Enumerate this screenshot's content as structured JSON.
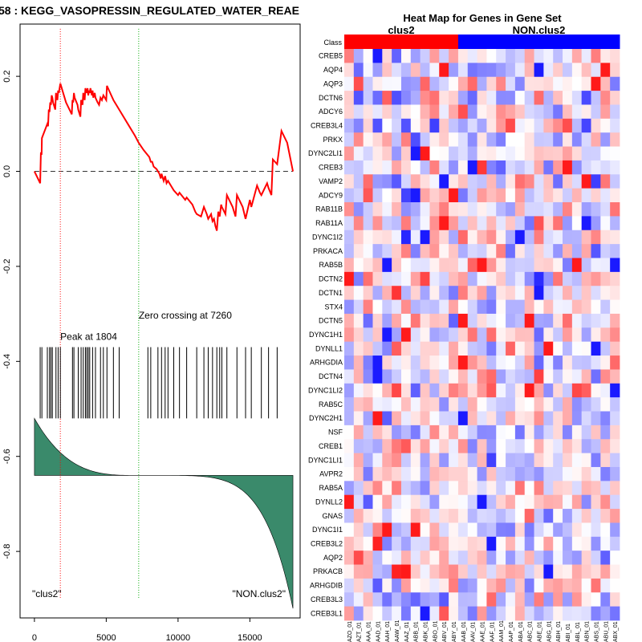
{
  "chart_data": [
    {
      "type": "line",
      "title": "58 : KEGG_VASOPRESSIN_REGULATED_WATER_REAE",
      "xlim": [
        -1000,
        18500
      ],
      "ylim": [
        -0.94,
        0.31
      ],
      "x_ticks": [
        0,
        5000,
        10000,
        15000
      ],
      "y_ticks": [
        0.2,
        0.0,
        -0.2,
        -0.4,
        -0.6,
        -0.8
      ],
      "x_tick_labels": [
        "0",
        "5000",
        "10000",
        "15000"
      ],
      "y_tick_labels": [
        "0.2",
        "0.0",
        "-0.2",
        "-0.4",
        "-0.6",
        "-0.8"
      ],
      "enrichment_score": {
        "x": [
          0,
          400,
          450,
          500,
          520,
          900,
          950,
          1000,
          1050,
          1100,
          1150,
          1200,
          1250,
          1300,
          1400,
          1450,
          1500,
          1600,
          1650,
          1700,
          1804,
          2200,
          2600,
          2650,
          2700,
          2750,
          2800,
          3000,
          3050,
          3200,
          3250,
          3350,
          3400,
          3500,
          3550,
          3600,
          3650,
          3700,
          3750,
          3800,
          3850,
          3900,
          4000,
          4050,
          4100,
          4200,
          4250,
          4400,
          4500,
          4600,
          4700,
          4800,
          5000,
          5050,
          5200,
          5500,
          6000,
          6500,
          7000,
          7260,
          7600,
          8000,
          8100,
          8200,
          8300,
          8500,
          8600,
          8700,
          8800,
          8850,
          9000,
          9100,
          9200,
          9300,
          9500,
          9700,
          10000,
          10100,
          10500,
          10600,
          11000,
          11200,
          11300,
          11600,
          11800,
          12000,
          12100,
          12300,
          12400,
          12500,
          12600,
          12700,
          12800,
          12900,
          13000,
          13050,
          13300,
          13400,
          13800,
          14000,
          14100,
          14500,
          14700,
          15000,
          15100,
          15500,
          15700,
          15800,
          16200,
          16300,
          16500,
          16600,
          16900,
          17200,
          17600,
          18000
        ],
        "y": [
          0.0,
          -0.025,
          0.04,
          0.035,
          0.07,
          0.1,
          0.095,
          0.13,
          0.125,
          0.145,
          0.14,
          0.16,
          0.155,
          0.145,
          0.135,
          0.13,
          0.165,
          0.15,
          0.17,
          0.165,
          0.185,
          0.145,
          0.12,
          0.15,
          0.145,
          0.165,
          0.155,
          0.14,
          0.13,
          0.115,
          0.15,
          0.14,
          0.165,
          0.15,
          0.175,
          0.17,
          0.165,
          0.175,
          0.16,
          0.17,
          0.165,
          0.175,
          0.16,
          0.17,
          0.155,
          0.165,
          0.155,
          0.145,
          0.14,
          0.155,
          0.15,
          0.16,
          0.15,
          0.18,
          0.17,
          0.15,
          0.125,
          0.1,
          0.075,
          0.06,
          0.045,
          0.03,
          0.02,
          0.02,
          0.01,
          0.005,
          0.0,
          -0.005,
          -0.015,
          -0.005,
          -0.02,
          -0.01,
          -0.025,
          -0.02,
          -0.03,
          -0.04,
          -0.05,
          -0.045,
          -0.06,
          -0.055,
          -0.07,
          -0.085,
          -0.09,
          -0.095,
          -0.075,
          -0.09,
          -0.1,
          -0.09,
          -0.105,
          -0.1,
          -0.115,
          -0.125,
          -0.085,
          -0.095,
          -0.07,
          -0.075,
          -0.09,
          -0.05,
          -0.075,
          -0.095,
          -0.05,
          -0.075,
          -0.1,
          -0.06,
          -0.075,
          -0.03,
          -0.045,
          -0.05,
          -0.025,
          -0.035,
          -0.05,
          0.025,
          0.015,
          0.085,
          0.06,
          0.0
        ],
        "line_color": "#ff0000",
        "width": 2
      },
      "baseline_y": 0,
      "peak_x": 1804,
      "peak_label": "Peak at 1804",
      "zero_crossing_x": 7260,
      "zero_crossing_label": "Zero crossing at 7260",
      "hits_x": [
        400,
        520,
        900,
        1050,
        1150,
        1250,
        1500,
        1650,
        1804,
        2650,
        2750,
        3050,
        3250,
        3400,
        3550,
        3650,
        3750,
        3850,
        4050,
        4250,
        4600,
        4800,
        5050,
        5500,
        5900,
        7900,
        8100,
        8600,
        8850,
        9100,
        9300,
        9700,
        10100,
        10600,
        11300,
        11800,
        12100,
        12400,
        12700,
        12900,
        13050,
        13400,
        14100,
        14700,
        15100,
        15800,
        16300,
        16900
      ],
      "hits_ylim": [
        -0.37,
        -0.52
      ],
      "ranked_metric": {
        "baseline_y": -0.64,
        "start_y": -0.52,
        "end_y": -0.92,
        "fill": "#3a8a6b"
      },
      "left_label": "\"clus2\"",
      "right_label": "\"NON.clus2\"",
      "colors": {
        "peak_line": "#ff0000",
        "zero_line": "#00aa00",
        "hits": "#000000"
      }
    },
    {
      "type": "heatmap",
      "title": "Heat Map for Genes in Gene Set",
      "class_row_label": "Class",
      "groups": [
        {
          "name": "clus2",
          "count": 12,
          "color": "#ff0000"
        },
        {
          "name": "NON.clus2",
          "count": 17,
          "color": "#0000ff"
        }
      ],
      "genes": [
        "CREB5",
        "AQP4",
        "AQP3",
        "DCTN6",
        "ADCY6",
        "CREB3L4",
        "PRKX",
        "DYNC2LI1",
        "CREB3",
        "VAMP2",
        "ADCY9",
        "RAB11B",
        "RAB11A",
        "DYNC1I2",
        "PRKACA",
        "RAB5B",
        "DCTN2",
        "DCTN1",
        "STX4",
        "DCTN5",
        "DYNC1H1",
        "DYNLL1",
        "ARHGDIA",
        "DCTN4",
        "DYNC1LI2",
        "RAB5C",
        "DYNC2H1",
        "NSF",
        "CREB1",
        "DYNC1LI1",
        "AVPR2",
        "RAB5A",
        "DYNLL2",
        "GNAS",
        "DYNC1I1",
        "CREB3L2",
        "AQP2",
        "PRKACB",
        "ARHGDIB",
        "CREB3L3",
        "CREB3L1"
      ],
      "samples": [
        "AZO_01",
        "AZT_01",
        "AAA_01",
        "AAD_01",
        "AAH_01",
        "AAW_01",
        "AAZ_01",
        "ABB_01",
        "ABK_01",
        "ABO_01",
        "ABV_01",
        "ABY_01",
        "AAB_01",
        "AAV_01",
        "AAE_01",
        "AAF_01",
        "AAM_01",
        "AAP_01",
        "ABA_01",
        "ABC_01",
        "ABE_01",
        "ABG_01",
        "ABH_01",
        "ABI_01",
        "ABL_01",
        "ABN_01",
        "ABS_01",
        "ABU_01",
        "ABX_01"
      ],
      "color_scale": {
        "low": "#0000ff",
        "mid": "#ffffff",
        "high": "#ff0000"
      }
    }
  ]
}
